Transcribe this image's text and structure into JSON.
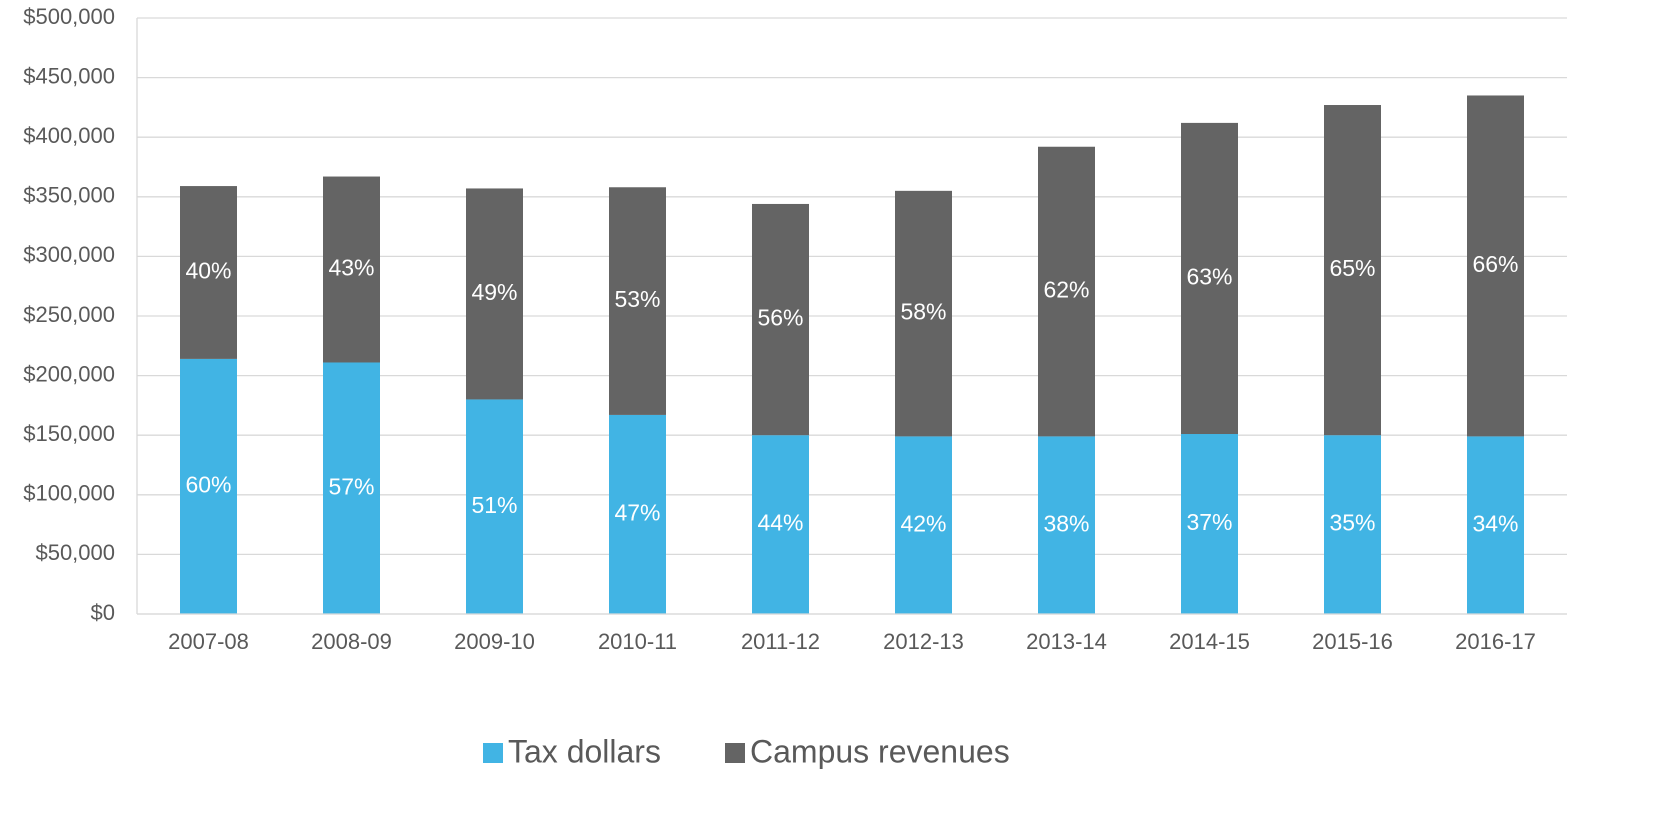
{
  "chart_data": {
    "type": "stacked-bar",
    "categories": [
      "2007-08",
      "2008-09",
      "2009-10",
      "2010-11",
      "2011-12",
      "2012-13",
      "2013-14",
      "2014-15",
      "2015-16",
      "2016-17"
    ],
    "series": [
      {
        "name": "Tax dollars",
        "color": "#41b4e4",
        "values": [
          214000,
          211000,
          180000,
          167000,
          150000,
          149000,
          149000,
          151000,
          150000,
          149000
        ],
        "labels": [
          "60%",
          "57%",
          "51%",
          "47%",
          "44%",
          "42%",
          "38%",
          "37%",
          "35%",
          "34%"
        ]
      },
      {
        "name": "Campus revenues",
        "color": "#646464",
        "values": [
          145000,
          156000,
          177000,
          191000,
          194000,
          206000,
          243000,
          261000,
          277000,
          286000
        ],
        "labels": [
          "40%",
          "43%",
          "49%",
          "53%",
          "56%",
          "58%",
          "62%",
          "63%",
          "65%",
          "66%"
        ]
      }
    ],
    "ylim": [
      0,
      500000
    ],
    "yticks": [
      {
        "value": 0,
        "label": "$0"
      },
      {
        "value": 50000,
        "label": "$50,000"
      },
      {
        "value": 100000,
        "label": "$100,000"
      },
      {
        "value": 150000,
        "label": "$150,000"
      },
      {
        "value": 200000,
        "label": "$200,000"
      },
      {
        "value": 250000,
        "label": "$250,000"
      },
      {
        "value": 300000,
        "label": "$300,000"
      },
      {
        "value": 350000,
        "label": "$350,000"
      },
      {
        "value": 400000,
        "label": "$400,000"
      },
      {
        "value": 450000,
        "label": "$450,000"
      },
      {
        "value": 500000,
        "label": "$500,000"
      }
    ],
    "grid": true,
    "legend": "bottom"
  }
}
